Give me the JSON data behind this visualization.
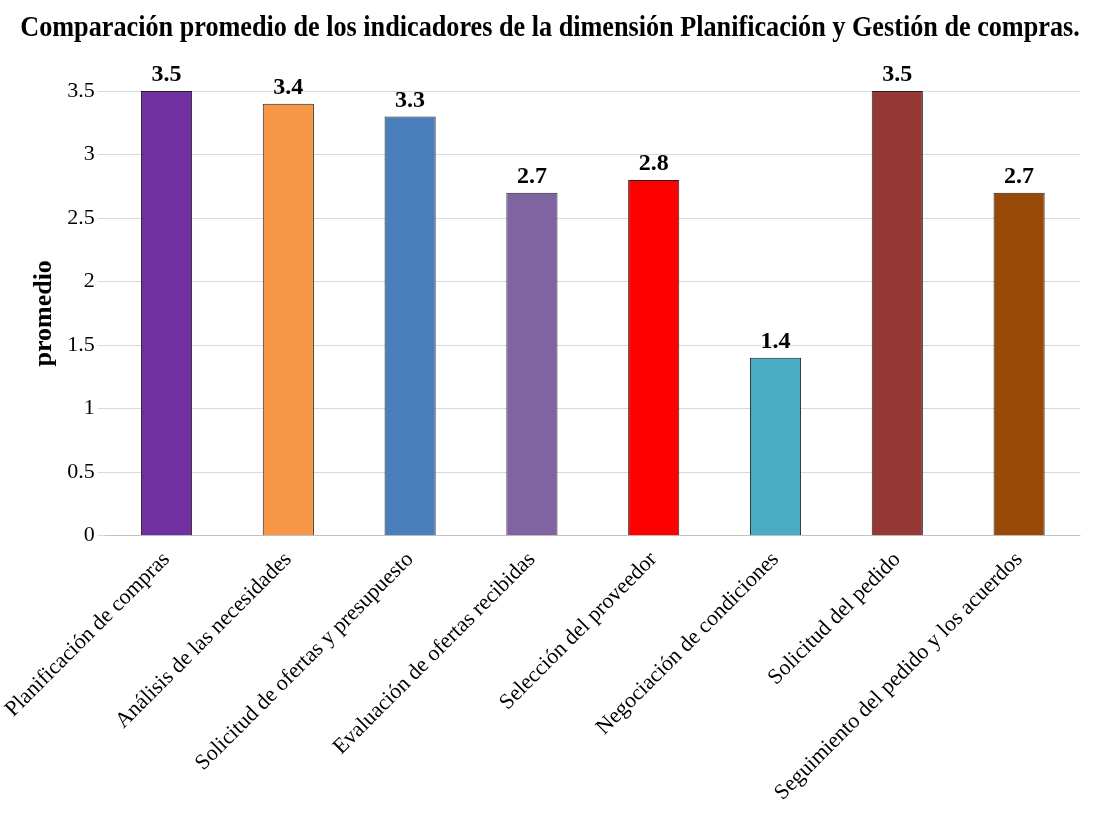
{
  "chart_data": {
    "type": "bar",
    "title": "Comparación promedio de los indicadores de la dimensión Planificación y Gestión de compras.",
    "ylabel": "promedio",
    "categories": [
      "Planificación de compras",
      "Análisis de las necesidades",
      "Solicitud de ofertas y presupuesto",
      "Evaluación de ofertas recibidas",
      "Selección del proveedor",
      "Negociación de condiciones",
      "Solicitud del pedido",
      "Seguimiento del pedido y los acuerdos"
    ],
    "values": [
      3.5,
      3.4,
      3.3,
      2.7,
      2.8,
      1.4,
      3.5,
      2.7
    ],
    "colors": [
      "#7030a0",
      "#f79646",
      "#4a7ebb",
      "#8064a2",
      "#ff0000",
      "#4bacc6",
      "#953735",
      "#984807"
    ],
    "ylim": [
      0,
      3.5
    ],
    "yticks": [
      0,
      0.5,
      1,
      1.5,
      2,
      2.5,
      3,
      3.5
    ],
    "grid": "y",
    "legend": false,
    "data_labels": true
  }
}
